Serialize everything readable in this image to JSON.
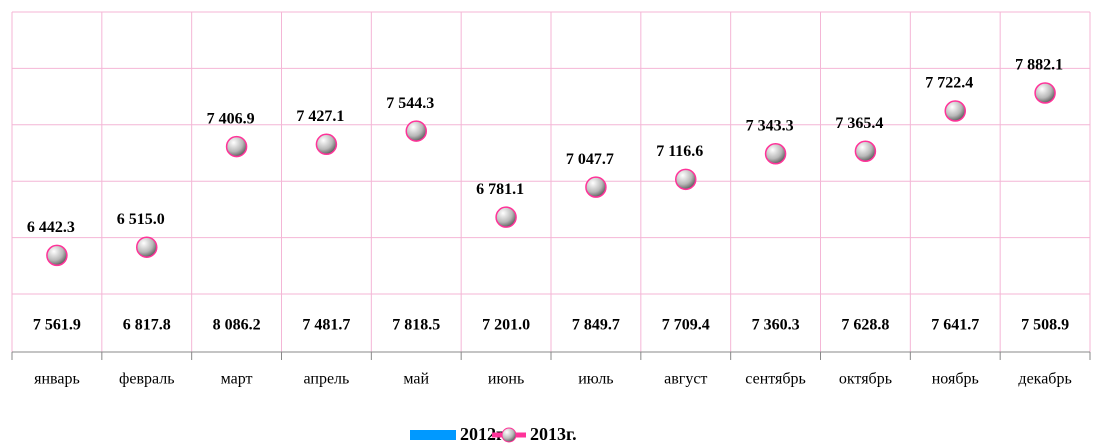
{
  "chart_data": {
    "type": "bar",
    "categories": [
      "январь",
      "февраль",
      "март",
      "апрель",
      "май",
      "июнь",
      "июль",
      "август",
      "сентябрь",
      "октябрь",
      "ноябрь",
      "декабрь"
    ],
    "series": [
      {
        "name": "2012г.",
        "color": "#0099ff",
        "values": [
          7561.9,
          6817.8,
          8086.2,
          7481.7,
          7818.5,
          7201.0,
          7849.7,
          7709.4,
          7360.3,
          7628.8,
          7641.7,
          7508.9
        ],
        "value_labels": [
          "7 561.9",
          "6 817.8",
          "8 086.2",
          "7 481.7",
          "7 818.5",
          "7 201.0",
          "7 849.7",
          "7 709.4",
          "7 360.3",
          "7 628.8",
          "7 641.7",
          "7 508.9"
        ]
      },
      {
        "name": "2013г.",
        "color": "#ff3399",
        "values": [
          6442.3,
          6515.0,
          7406.9,
          7427.1,
          7544.3,
          6781.1,
          7047.7,
          7116.6,
          7343.3,
          7365.4,
          7722.4,
          7882.1
        ],
        "value_labels": [
          "6 442.3",
          "6 515.0",
          "7 406.9",
          "7 427.1",
          "7 544.3",
          "6 781.1",
          "7 047.7",
          "7 116.6",
          "7 343.3",
          "7 365.4",
          "7 722.4",
          "7 882.1"
        ]
      }
    ],
    "ylim": [
      6100,
      8600
    ],
    "yticks": [
      6100,
      6600,
      7100,
      7600,
      8100,
      8600
    ],
    "grid": true
  }
}
